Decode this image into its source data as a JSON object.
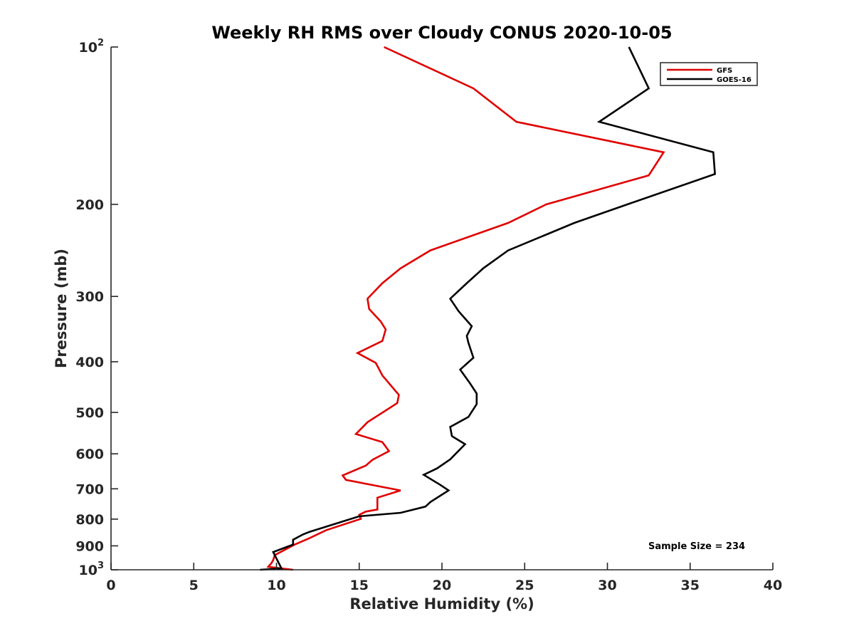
{
  "chart_data": {
    "type": "line",
    "title": "Weekly RH RMS over Cloudy CONUS 2020-10-05",
    "xlabel": "Relative Humidity (%)",
    "ylabel": "Pressure (mb)",
    "xlim": [
      0,
      40
    ],
    "ylim": [
      100,
      1000
    ],
    "y_scale": "log",
    "y_reversed": true,
    "grid": false,
    "legend_position": "top-right",
    "x_ticks": [
      "0",
      "5",
      "10",
      "15",
      "20",
      "25",
      "30",
      "35",
      "40"
    ],
    "y_ticks": [
      {
        "value": 100,
        "base": "10",
        "exp": "2"
      },
      {
        "value": 200,
        "label": "200"
      },
      {
        "value": 300,
        "label": "300"
      },
      {
        "value": 400,
        "label": "400"
      },
      {
        "value": 500,
        "label": "500"
      },
      {
        "value": 600,
        "label": "600"
      },
      {
        "value": 700,
        "label": "700"
      },
      {
        "value": 800,
        "label": "800"
      },
      {
        "value": 900,
        "label": "900"
      },
      {
        "value": 1000,
        "base": "10",
        "exp": "3"
      }
    ],
    "annotation": "Sample Size = 234",
    "series": [
      {
        "name": "GFS",
        "color": "#e00000",
        "points": [
          [
            16.5,
            100
          ],
          [
            21.9,
            120
          ],
          [
            24.5,
            139
          ],
          [
            33.4,
            159
          ],
          [
            32.5,
            176
          ],
          [
            26.3,
            200
          ],
          [
            24.0,
            217
          ],
          [
            19.3,
            245
          ],
          [
            17.5,
            265
          ],
          [
            16.4,
            283
          ],
          [
            15.5,
            303
          ],
          [
            15.6,
            317
          ],
          [
            16.3,
            335
          ],
          [
            16.6,
            347
          ],
          [
            16.4,
            365
          ],
          [
            14.9,
            385
          ],
          [
            16.0,
            402
          ],
          [
            16.4,
            425
          ],
          [
            17.4,
            463
          ],
          [
            17.3,
            480
          ],
          [
            15.5,
            522
          ],
          [
            14.8,
            550
          ],
          [
            16.4,
            570
          ],
          [
            16.8,
            593
          ],
          [
            15.8,
            616
          ],
          [
            15.4,
            632
          ],
          [
            14.0,
            660
          ],
          [
            14.2,
            673
          ],
          [
            17.5,
            705
          ],
          [
            16.1,
            728
          ],
          [
            16.1,
            767
          ],
          [
            15.4,
            774
          ],
          [
            15.0,
            785
          ],
          [
            15.1,
            799
          ],
          [
            13.0,
            840
          ],
          [
            12.0,
            870
          ],
          [
            11.1,
            895
          ],
          [
            9.9,
            937
          ],
          [
            9.8,
            958
          ],
          [
            9.7,
            971
          ],
          [
            9.5,
            987
          ],
          [
            11.0,
            1000
          ]
        ]
      },
      {
        "name": "GOES-16",
        "color": "#000000",
        "points": [
          [
            31.3,
            100
          ],
          [
            32.5,
            120
          ],
          [
            29.5,
            139
          ],
          [
            36.4,
            159
          ],
          [
            36.5,
            175
          ],
          [
            31.2,
            200
          ],
          [
            28.0,
            217
          ],
          [
            24.0,
            245
          ],
          [
            22.5,
            265
          ],
          [
            21.5,
            283
          ],
          [
            20.5,
            303
          ],
          [
            21.0,
            320
          ],
          [
            21.8,
            342
          ],
          [
            21.5,
            357
          ],
          [
            21.6,
            368
          ],
          [
            21.9,
            393
          ],
          [
            21.1,
            414
          ],
          [
            21.7,
            440
          ],
          [
            22.1,
            460
          ],
          [
            22.1,
            482
          ],
          [
            21.6,
            510
          ],
          [
            20.5,
            533
          ],
          [
            20.6,
            555
          ],
          [
            21.4,
            575
          ],
          [
            20.5,
            615
          ],
          [
            19.7,
            640
          ],
          [
            18.9,
            658
          ],
          [
            19.3,
            670
          ],
          [
            19.9,
            688
          ],
          [
            20.4,
            705
          ],
          [
            19.3,
            742
          ],
          [
            19.0,
            757
          ],
          [
            17.5,
            778
          ],
          [
            15.0,
            790
          ],
          [
            12.0,
            846
          ],
          [
            11.6,
            856
          ],
          [
            11.0,
            876
          ],
          [
            11.0,
            895
          ],
          [
            9.8,
            925
          ],
          [
            10.3,
            994
          ],
          [
            9.0,
            1000
          ]
        ]
      }
    ]
  }
}
